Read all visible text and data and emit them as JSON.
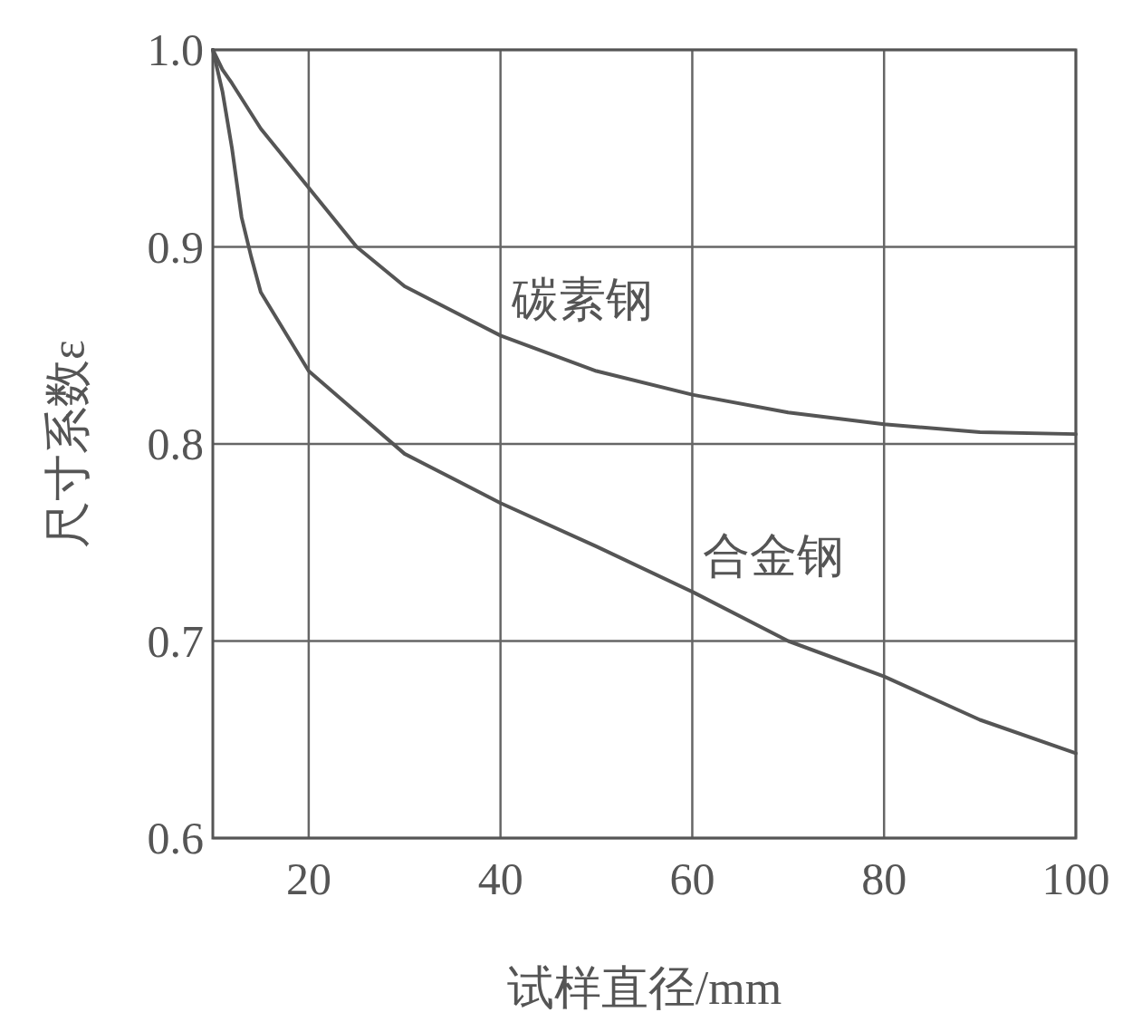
{
  "chart_data": {
    "type": "line",
    "xlabel": "试样直径/mm",
    "ylabel": "尺寸系数ε",
    "xlim": [
      10,
      100
    ],
    "xticks": [
      20,
      40,
      60,
      80,
      100
    ],
    "ylim": [
      0.6,
      1.0
    ],
    "yticks": [
      {
        "value": 0.6,
        "label": "0.6"
      },
      {
        "value": 0.7,
        "label": "0.7"
      },
      {
        "value": 0.8,
        "label": "0.8"
      },
      {
        "value": 0.9,
        "label": "0.9"
      },
      {
        "value": 1.0,
        "label": "1.0"
      }
    ],
    "grid": true,
    "legend": false,
    "marker": "none",
    "line_style": "solid",
    "series": [
      {
        "name": "碳素钢",
        "color": "#555555",
        "x": [
          10,
          11,
          12,
          15,
          20,
          25,
          30,
          40,
          50,
          60,
          70,
          80,
          90,
          100
        ],
        "values": [
          1.0,
          0.99,
          0.983,
          0.96,
          0.93,
          0.9,
          0.88,
          0.855,
          0.837,
          0.825,
          0.816,
          0.81,
          0.806,
          0.805
        ]
      },
      {
        "name": "合金钢",
        "color": "#555555",
        "x": [
          10,
          11,
          12,
          13,
          14,
          15,
          20,
          25,
          30,
          40,
          50,
          60,
          70,
          80,
          90,
          100
        ],
        "values": [
          1.0,
          0.979,
          0.95,
          0.915,
          0.895,
          0.877,
          0.837,
          0.816,
          0.795,
          0.77,
          0.748,
          0.725,
          0.7,
          0.682,
          0.66,
          0.643
        ]
      }
    ]
  }
}
